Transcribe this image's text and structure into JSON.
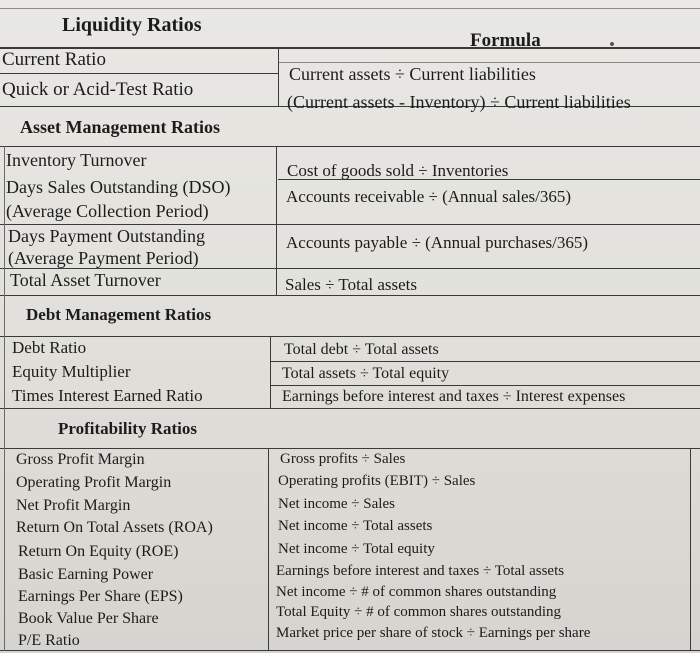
{
  "liquidity": {
    "title": "Liquidity Ratios",
    "formula_header": "Formula",
    "rows": [
      {
        "name": "Current Ratio",
        "formula": "Current assets ÷ Current liabilities"
      },
      {
        "name": "Quick or Acid-Test Ratio",
        "formula": "(Current assets - Inventory) ÷ Current liabilities"
      }
    ]
  },
  "asset": {
    "title": "Asset Management Ratios",
    "rows": [
      {
        "name": "Inventory Turnover",
        "formula": "Cost of goods sold ÷ Inventories"
      },
      {
        "name": "Days Sales Outstanding (DSO)",
        "name2": "(Average Collection Period)",
        "formula": "Accounts receivable ÷ (Annual sales/365)"
      },
      {
        "name": "Days Payment Outstanding",
        "name2": "(Average Payment Period)",
        "formula": "Accounts payable ÷ (Annual purchases/365)"
      },
      {
        "name": "Total Asset Turnover",
        "formula": "Sales ÷ Total assets"
      }
    ]
  },
  "debt": {
    "title": "Debt Management Ratios",
    "rows": [
      {
        "name": "Debt Ratio",
        "formula": "Total debt ÷ Total assets"
      },
      {
        "name": "Equity Multiplier",
        "formula": "Total assets ÷ Total equity"
      },
      {
        "name": "Times Interest Earned Ratio",
        "formula": "Earnings before interest and taxes ÷ Interest expenses"
      }
    ]
  },
  "profit": {
    "title": "Profitability Ratios",
    "rows": [
      {
        "name": "Gross Profit Margin",
        "formula": "Gross profits ÷ Sales"
      },
      {
        "name": "Operating Profit Margin",
        "formula": "Operating profits (EBIT) ÷ Sales"
      },
      {
        "name": "Net Profit Margin",
        "formula": "Net income ÷ Sales"
      },
      {
        "name": "Return On Total Assets (ROA)",
        "formula": "Net income ÷ Total assets"
      },
      {
        "name": "Return On Equity (ROE)",
        "formula": "Net income ÷ Total equity"
      },
      {
        "name": "Basic Earning Power",
        "formula": "Earnings before interest and taxes ÷ Total assets"
      },
      {
        "name": "Earnings Per Share (EPS)",
        "formula": "Net income ÷ # of common shares outstanding"
      },
      {
        "name": "Book Value Per Share",
        "formula": "Total Equity ÷ # of common shares outstanding"
      },
      {
        "name": "P/E Ratio",
        "formula": "Market price per share of stock ÷ Earnings per share"
      }
    ]
  }
}
